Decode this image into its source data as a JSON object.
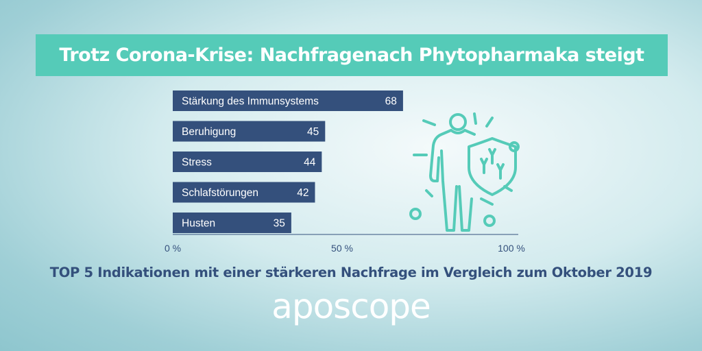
{
  "title": "Trotz Corona-Krise: Nachfragenach Phytopharmaka steigt",
  "subtitle": "TOP 5 Indikationen mit einer stärkeren Nachfrage im Vergleich zum Oktober 2019",
  "brand": "aposcope",
  "colors": {
    "bar": "#34507c",
    "accent": "#55cbb8",
    "text_dark": "#34507c"
  },
  "icon": "human-figure-with-antibody-shield-icon",
  "chart_data": {
    "type": "bar",
    "orientation": "horizontal",
    "categories": [
      "Stärkung des Immunsystems",
      "Beruhigung",
      "Stress",
      "Schlafstörungen",
      "Husten"
    ],
    "values": [
      68,
      45,
      44,
      42,
      35
    ],
    "xlim": [
      0,
      100
    ],
    "ticks": [
      0,
      50,
      100
    ],
    "tick_labels": [
      "0 %",
      "50 %",
      "100 %"
    ],
    "grid": false
  }
}
